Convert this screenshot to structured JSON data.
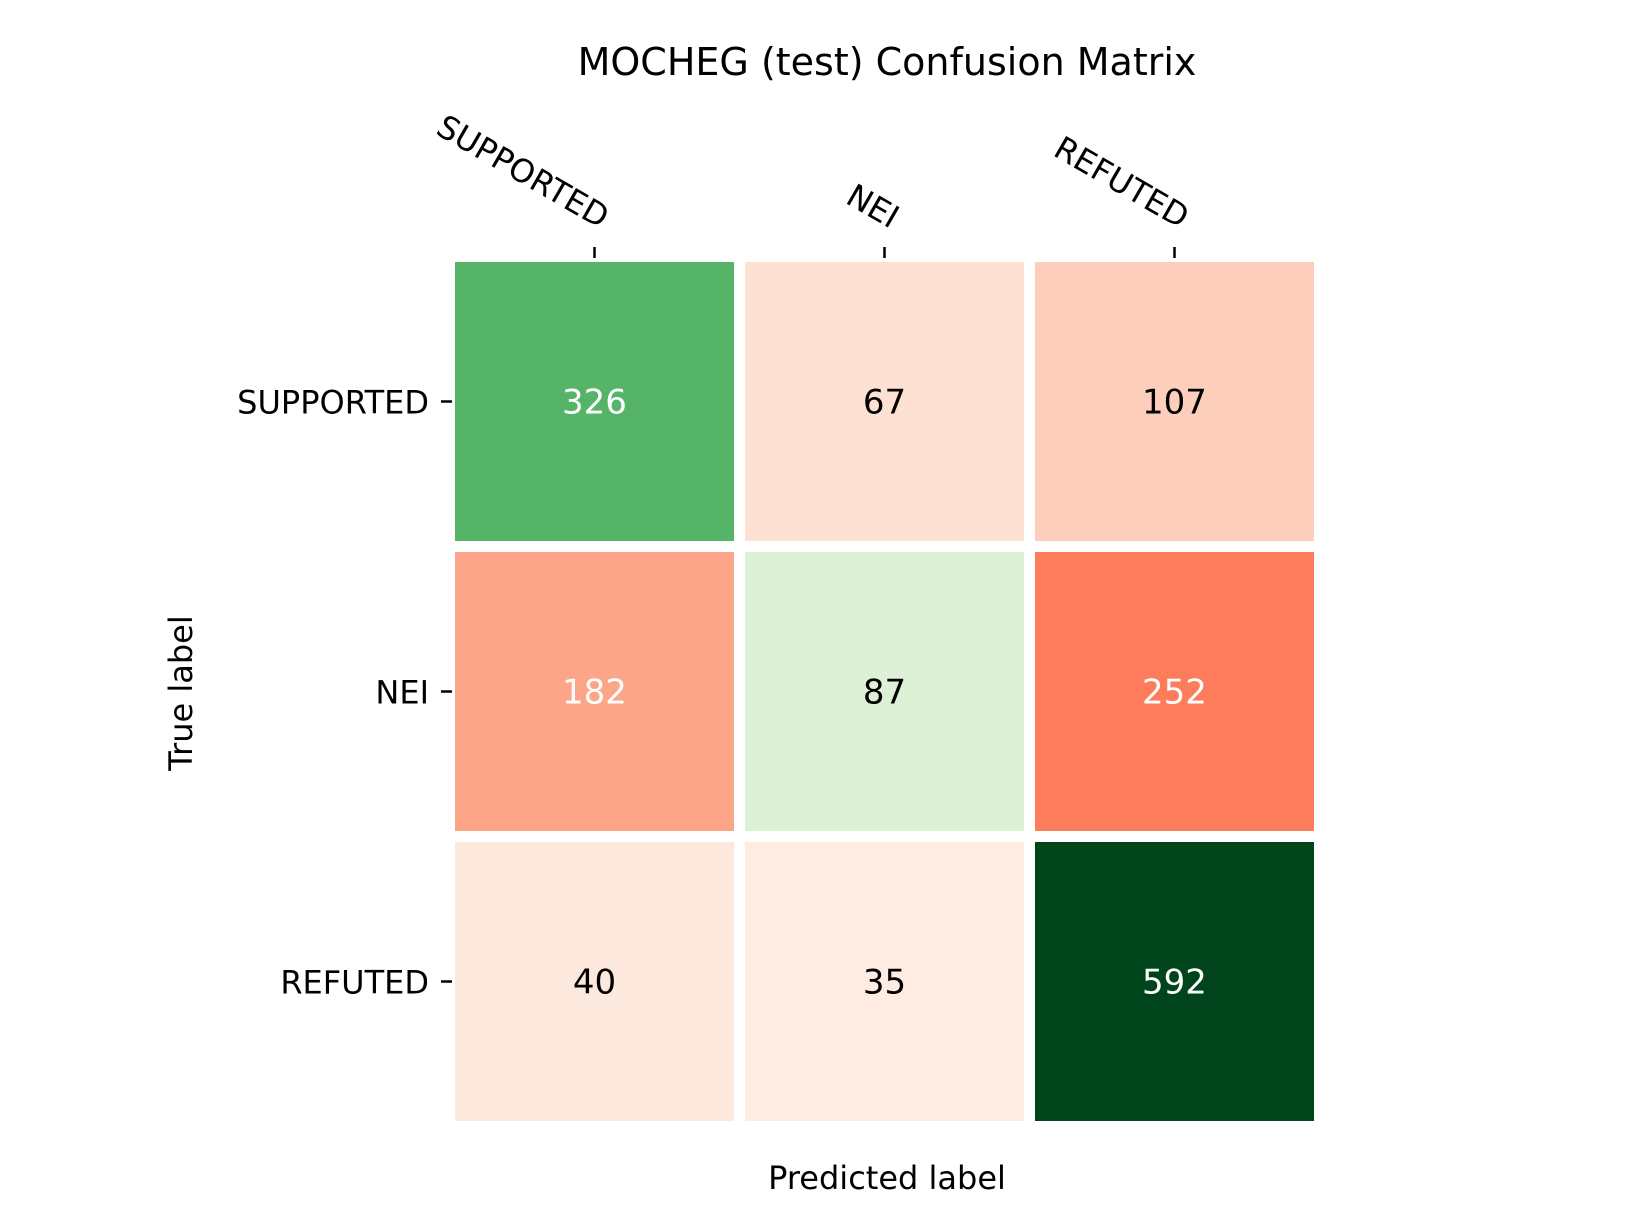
{
  "chart_data": {
    "type": "heatmap",
    "title": "MOCHEG (test) Confusion Matrix",
    "xlabel": "Predicted label",
    "ylabel": "True label",
    "x_categories": [
      "SUPPORTED",
      "NEI",
      "REFUTED"
    ],
    "y_categories": [
      "SUPPORTED",
      "NEI",
      "REFUTED"
    ],
    "values": [
      [
        326,
        67,
        107
      ],
      [
        182,
        87,
        252
      ],
      [
        40,
        35,
        592
      ]
    ],
    "colors": [
      [
        "#55b467",
        "#fde1d3",
        "#fccebb"
      ],
      [
        "#fca588",
        "#ddf1d6",
        "#fd7c5c"
      ],
      [
        "#fde8dd",
        "#feebe2",
        "#00441b"
      ]
    ],
    "text_colors": [
      [
        "#ffffff",
        "#000000",
        "#000000"
      ],
      [
        "#ffffff",
        "#000000",
        "#ffffff"
      ],
      [
        "#000000",
        "#000000",
        "#ffffff"
      ]
    ],
    "x_tick_position": "top",
    "x_tick_rotation": "diagonal",
    "grid": false,
    "legend": "none"
  }
}
